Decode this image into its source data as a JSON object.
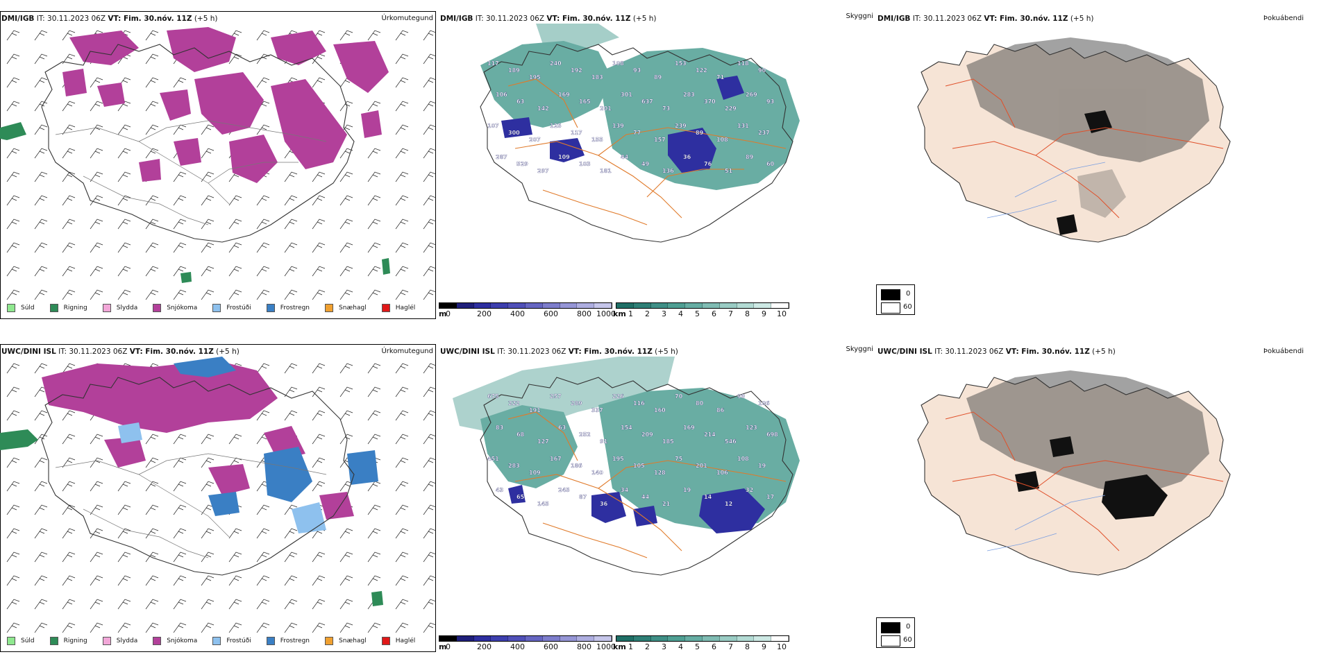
{
  "rows": [
    {
      "model": "DMI/IGB",
      "issue_label": "IT:",
      "issue_time": "30.11.2023 06Z",
      "valid_label": "VT: Fim. 30.nóv. 11Z",
      "lead": "(+5 h)",
      "panel1_title": "Úrkomutegund",
      "panel2_title": "Skyggni",
      "panel3_title": "Þokuábendi",
      "vis_labels": [
        "117",
        "189",
        "195",
        "240",
        "192",
        "183",
        "108",
        "93",
        "89",
        "153",
        "122",
        "71",
        "118",
        "90",
        "106",
        "63",
        "142",
        "169",
        "165",
        "201",
        "301",
        "637",
        "73",
        "283",
        "370",
        "229",
        "269",
        "93",
        "107",
        "300",
        "207",
        "125",
        "117",
        "155",
        "139",
        "77",
        "157",
        "239",
        "89",
        "108",
        "131",
        "237",
        "287",
        "529",
        "297",
        "109",
        "103",
        "181",
        "44",
        "49",
        "136",
        "36",
        "76",
        "51",
        "89",
        "60"
      ]
    },
    {
      "model": "UWC/DINI ISL",
      "issue_label": "IT:",
      "issue_time": "30.11.2023 06Z",
      "valid_label": "VT: Fim. 30.nóv. 11Z",
      "lead": "(+5 h)",
      "panel1_title": "Úrkomutegund",
      "panel2_title": "Skyggni",
      "panel3_title": "Þokuábendi",
      "vis_labels": [
        "675",
        "222",
        "191",
        "257",
        "289",
        "337",
        "226",
        "116",
        "160",
        "70",
        "80",
        "86",
        "99",
        "106",
        "83",
        "68",
        "127",
        "63",
        "252",
        "91",
        "154",
        "209",
        "185",
        "169",
        "214",
        "546",
        "123",
        "698",
        "451",
        "283",
        "109",
        "167",
        "186",
        "140",
        "195",
        "105",
        "128",
        "75",
        "201",
        "106",
        "108",
        "19",
        "43",
        "65",
        "145",
        "245",
        "87",
        "36",
        "34",
        "44",
        "21",
        "19",
        "14",
        "12",
        "32",
        "17"
      ]
    }
  ],
  "precip_legend": [
    {
      "label": "Súld",
      "color": "#8fe88f"
    },
    {
      "label": "Rigning",
      "color": "#2e8b57"
    },
    {
      "label": "Slydda",
      "color": "#f2a7d8"
    },
    {
      "label": "Snjókoma",
      "color": "#b2409a"
    },
    {
      "label": "Frostúði",
      "color": "#8ec1ee"
    },
    {
      "label": "Frostregn",
      "color": "#3a7fc4"
    },
    {
      "label": "Snæhagl",
      "color": "#f0a030"
    },
    {
      "label": "Haglél",
      "color": "#e01818"
    }
  ],
  "cbar_m": {
    "unit": "m",
    "ticks": [
      "0",
      "200",
      "400",
      "600",
      "800",
      "1000"
    ]
  },
  "cbar_km": {
    "unit": "km",
    "ticks": [
      "1",
      "2",
      "3",
      "4",
      "5",
      "6",
      "7",
      "8",
      "9",
      "10"
    ]
  },
  "fog_legend": {
    "top": "0",
    "bottom": "60"
  },
  "colors": {
    "snow": "#b2409a",
    "rain": "#2e8b57",
    "freezing_drizzle": "#8ec1ee",
    "freezing_rain": "#3a7fc4",
    "vis_teal": "#4f9f93",
    "vis_blue": "#2e2fa0",
    "roads": "#e07a2a",
    "land_fog": "#f6e4d6"
  }
}
